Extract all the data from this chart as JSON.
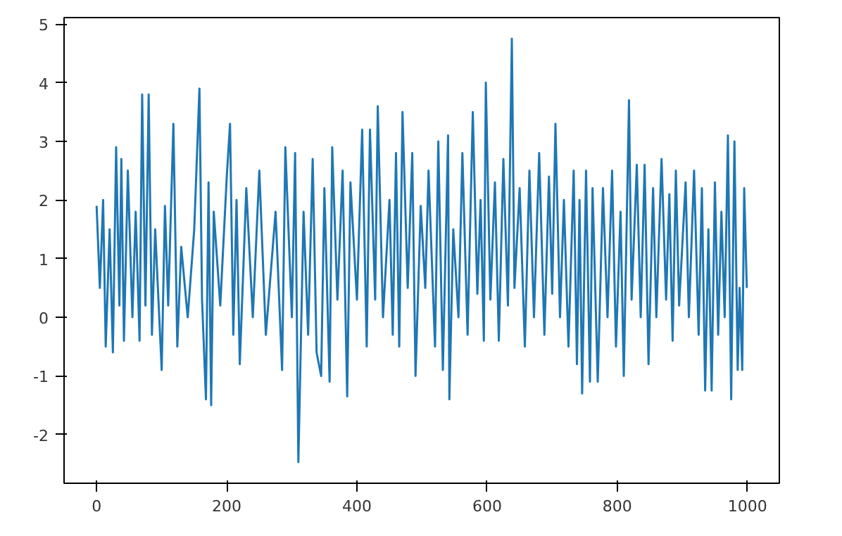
{
  "chart_data": {
    "type": "line",
    "x": [
      0,
      5,
      10,
      14,
      20,
      25,
      30,
      35,
      38,
      42,
      48,
      55,
      60,
      66,
      70,
      75,
      80,
      85,
      90,
      100,
      105,
      110,
      118,
      124,
      130,
      140,
      150,
      158,
      162,
      168,
      172,
      176,
      180,
      190,
      200,
      205,
      210,
      215,
      220,
      230,
      240,
      250,
      260,
      275,
      285,
      290,
      300,
      305,
      310,
      318,
      325,
      332,
      338,
      345,
      350,
      358,
      362,
      370,
      378,
      385,
      390,
      400,
      408,
      415,
      420,
      428,
      432,
      440,
      450,
      455,
      460,
      465,
      470,
      478,
      485,
      490,
      498,
      505,
      510,
      520,
      525,
      532,
      540,
      542,
      548,
      556,
      562,
      570,
      578,
      585,
      590,
      595,
      598,
      605,
      612,
      618,
      625,
      632,
      638,
      642,
      650,
      658,
      665,
      672,
      680,
      688,
      695,
      700,
      705,
      712,
      718,
      725,
      733,
      738,
      742,
      746,
      752,
      758,
      762,
      770,
      778,
      785,
      792,
      798,
      805,
      810,
      818,
      822,
      830,
      836,
      842,
      848,
      855,
      860,
      868,
      875,
      880,
      885,
      890,
      895,
      905,
      910,
      918,
      925,
      930,
      935,
      940,
      945,
      950,
      955,
      960,
      965,
      970,
      975,
      980,
      985,
      988,
      992,
      995,
      999
    ],
    "series": [
      {
        "color": "#1f77b4",
        "values": [
          1.9,
          0.5,
          2.0,
          -0.5,
          1.5,
          -0.6,
          2.9,
          0.2,
          2.7,
          -0.4,
          2.5,
          0.0,
          1.8,
          -0.4,
          3.8,
          0.2,
          3.8,
          -0.3,
          1.5,
          -0.9,
          1.9,
          0.2,
          3.3,
          -0.5,
          1.2,
          0.0,
          1.5,
          3.9,
          0.3,
          -1.4,
          2.3,
          -1.5,
          1.8,
          0.2,
          2.4,
          3.3,
          -0.3,
          2.0,
          -0.8,
          2.2,
          0.0,
          2.5,
          -0.3,
          1.8,
          -0.9,
          2.9,
          0.0,
          2.8,
          -2.47,
          1.8,
          -0.3,
          2.7,
          -0.6,
          -1.0,
          2.2,
          -1.1,
          2.9,
          0.3,
          2.5,
          -1.35,
          2.3,
          0.3,
          3.2,
          -0.5,
          3.2,
          0.3,
          3.6,
          0.0,
          2.0,
          -0.3,
          2.8,
          -0.5,
          3.5,
          0.5,
          2.8,
          -1.0,
          1.9,
          0.5,
          2.5,
          -0.5,
          3.0,
          -0.9,
          3.1,
          -1.4,
          1.5,
          0.0,
          2.8,
          -0.3,
          3.5,
          0.4,
          2.0,
          -0.4,
          4.0,
          0.3,
          2.3,
          -0.4,
          2.7,
          0.2,
          4.75,
          0.5,
          2.2,
          -0.5,
          2.5,
          0.0,
          2.8,
          -0.3,
          2.4,
          0.4,
          3.3,
          0.0,
          2.0,
          -0.5,
          2.5,
          -0.8,
          2.0,
          -1.3,
          2.5,
          -1.1,
          2.2,
          -1.1,
          2.2,
          0.0,
          2.5,
          -0.5,
          1.8,
          -1.0,
          3.7,
          0.3,
          2.6,
          0.0,
          2.6,
          -0.8,
          2.2,
          0.0,
          2.7,
          0.3,
          2.1,
          -0.4,
          2.5,
          0.2,
          2.3,
          0.0,
          2.5,
          -0.3,
          2.2,
          -1.25,
          1.5,
          -1.25,
          2.3,
          -0.3,
          1.8,
          0.0,
          3.1,
          -1.4,
          3.0,
          -0.9,
          0.5,
          -0.9,
          2.2,
          0.5
        ]
      }
    ],
    "xlim": [
      -50,
      1049
    ],
    "ylim": [
      -2.83,
      5.11
    ],
    "xticks": [
      0,
      200,
      400,
      600,
      800,
      1000
    ],
    "yticks": [
      -2,
      -1,
      0,
      1,
      2,
      3,
      4,
      5
    ],
    "grid": false,
    "line_style": "solid",
    "marker": "none"
  }
}
